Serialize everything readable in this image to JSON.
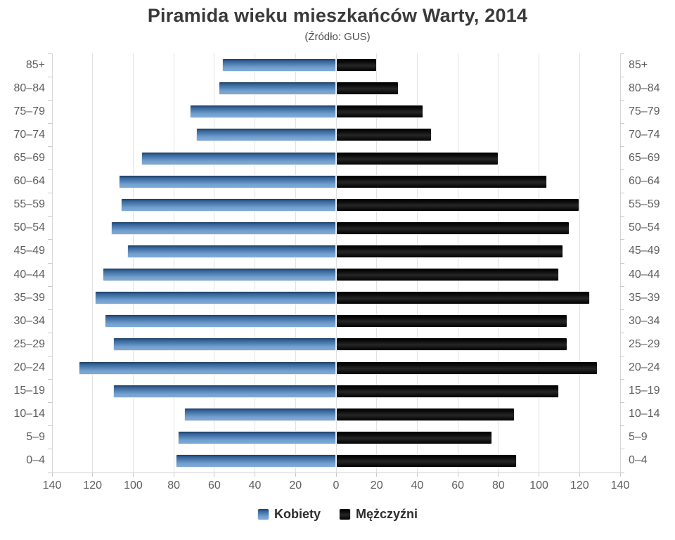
{
  "title": "Piramida wieku mieszkańców Warty, 2014",
  "subtitle": "(Źródło: GUS)",
  "legend": [
    {
      "label": "Kobiety",
      "color": "#4d80b3"
    },
    {
      "label": "Mężczyźni",
      "color": "#161616"
    }
  ],
  "colors": {
    "female_bar": "#4d80b3",
    "male_bar": "#111111",
    "gridline": "#e2e2e2",
    "axis_text": "#5d5e60",
    "title_text": "#3a3a3a"
  },
  "chart_data": {
    "type": "bar",
    "subtype": "population-pyramid",
    "title": "Piramida wieku mieszkańców Warty, 2014",
    "subtitle": "(Źródło: GUS)",
    "xlabel": "",
    "ylabel": "",
    "grid": true,
    "legend_position": "bottom",
    "categories": [
      "85+",
      "80–84",
      "75–79",
      "70–74",
      "65–69",
      "60–64",
      "55–59",
      "50–54",
      "45–49",
      "40–44",
      "35–39",
      "30–34",
      "25–29",
      "20–24",
      "15–19",
      "10–14",
      "5–9",
      "0–4"
    ],
    "series": [
      {
        "name": "Kobiety",
        "side": "left",
        "color": "#4d80b3",
        "values": [
          56,
          58,
          72,
          69,
          96,
          107,
          106,
          111,
          103,
          115,
          119,
          114,
          110,
          127,
          110,
          75,
          78,
          79
        ]
      },
      {
        "name": "Mężczyźni",
        "side": "right",
        "color": "#111111",
        "values": [
          20,
          31,
          43,
          47,
          80,
          104,
          120,
          115,
          112,
          110,
          125,
          114,
          114,
          129,
          110,
          88,
          77,
          89
        ]
      }
    ],
    "axis": {
      "min": 0,
      "max": 140,
      "step": 20,
      "tick_labels": [
        "140",
        "120",
        "100",
        "80",
        "60",
        "40",
        "20",
        "0",
        "20",
        "40",
        "60",
        "80",
        "100",
        "120",
        "140"
      ]
    }
  }
}
